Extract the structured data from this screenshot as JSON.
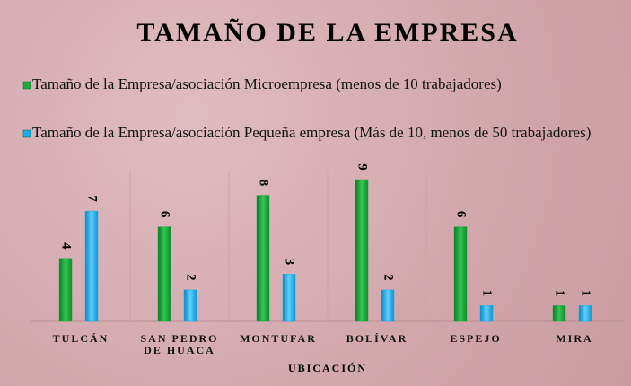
{
  "chart_data": {
    "type": "bar",
    "title": "TAMAÑO DE LA EMPRESA",
    "x_label": "UBICACIÓN",
    "categories": [
      "TULCÁN",
      "SAN PEDRO DE HUACA",
      "MONTUFAR",
      "BOLÍVAR",
      "ESPEJO",
      "MIRA"
    ],
    "series": [
      {
        "name": "Tamaño de la Empresa/asociación Microempresa (menos de 10 trabajadores)",
        "color": "#1fa83c",
        "values": [
          4,
          6,
          8,
          9,
          6,
          1
        ]
      },
      {
        "name": "Tamaño de la Empresa/asociación Pequeña empresa (Más de 10, menos de 50 trabajadores)",
        "color": "#1aaee8",
        "values": [
          7,
          2,
          3,
          2,
          1,
          1
        ]
      }
    ]
  }
}
